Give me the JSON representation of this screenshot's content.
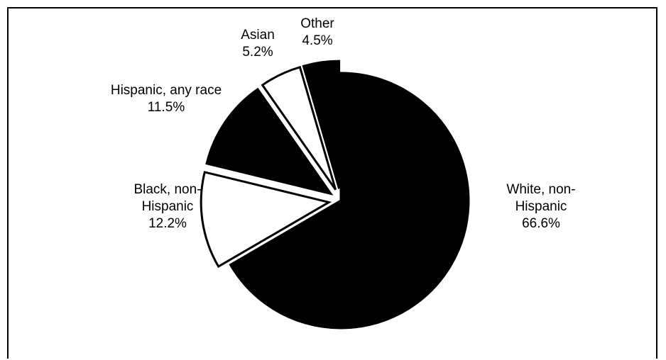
{
  "chart_data": {
    "type": "pie",
    "title": "",
    "legend": "none",
    "slices": [
      {
        "label": [
          "White, non-",
          "Hispanic"
        ],
        "value": 66.6,
        "value_label": "66.6%",
        "color": "#000000",
        "exploded": false
      },
      {
        "label": [
          "Black, non-",
          "Hispanic"
        ],
        "value": 12.2,
        "value_label": "12.2%",
        "color": "#ffffff",
        "exploded": true
      },
      {
        "label": [
          "Hispanic, any race"
        ],
        "value": 11.5,
        "value_label": "11.5%",
        "color": "#000000",
        "exploded": true
      },
      {
        "label": [
          "Asian"
        ],
        "value": 5.2,
        "value_label": "5.2%",
        "color": "#ffffff",
        "exploded": true
      },
      {
        "label": [
          "Other"
        ],
        "value": 4.5,
        "value_label": "4.5%",
        "color": "#000000",
        "exploded": true
      }
    ]
  }
}
